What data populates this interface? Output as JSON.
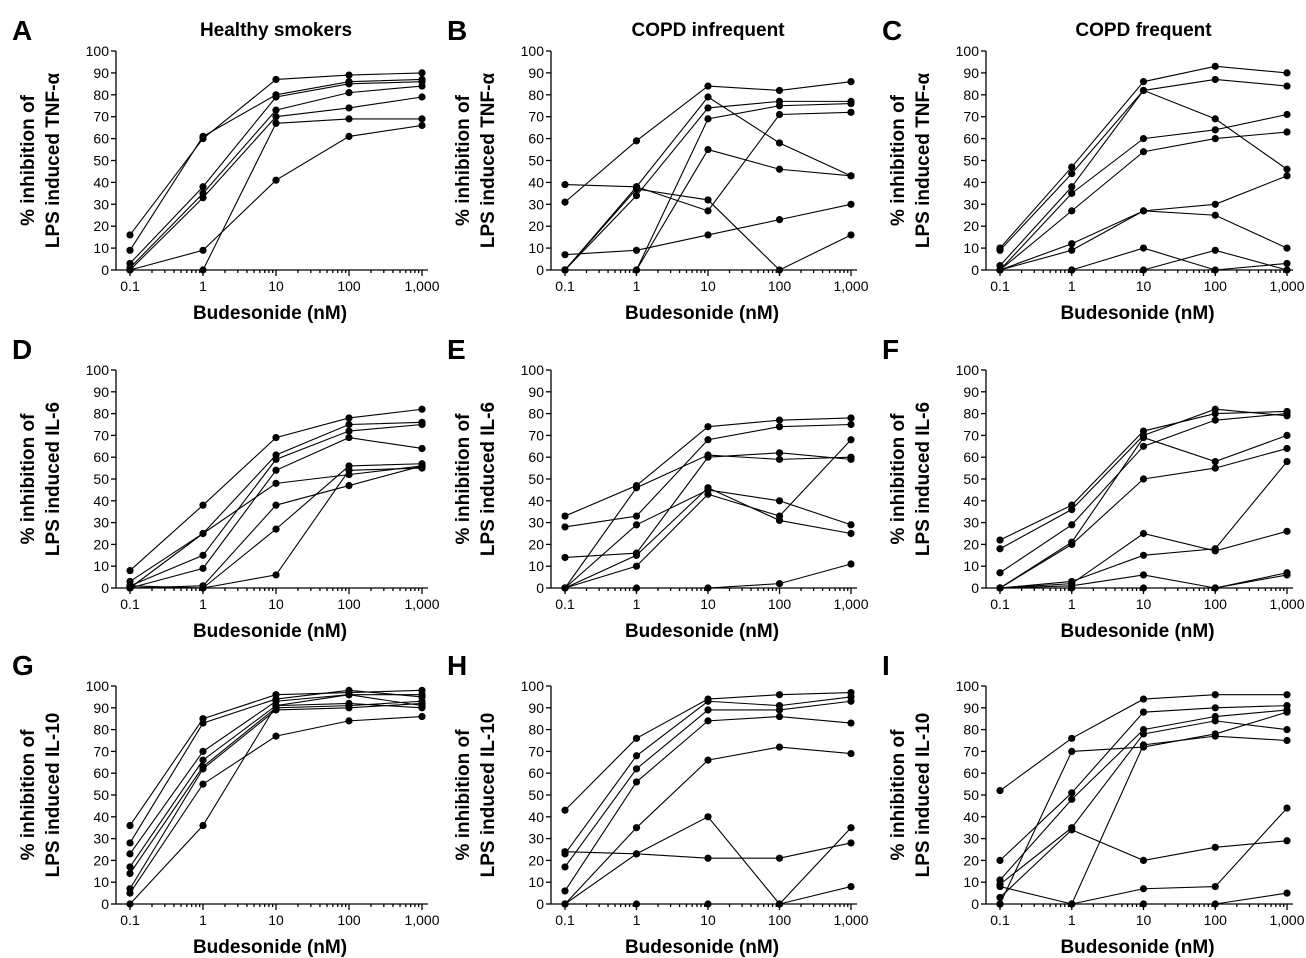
{
  "chart_data": [
    {
      "type": "line",
      "letter": "A",
      "title": "Healthy smokers",
      "ylabel_lines": [
        "% inhibition of",
        "LPS induced TNF-α"
      ],
      "xlabel": "Budesonide (nM)",
      "x": [
        0.1,
        1,
        10,
        100,
        1000
      ],
      "x_tick_labels": [
        "0.1",
        "1",
        "10",
        "100",
        "1,000"
      ],
      "y_ticks": [
        0,
        10,
        20,
        30,
        40,
        50,
        60,
        70,
        80,
        90,
        100
      ],
      "ylim": [
        0,
        100
      ],
      "x_scale": "log",
      "series": [
        {
          "values": [
            16,
            60,
            87,
            89,
            90
          ]
        },
        {
          "values": [
            9,
            61,
            80,
            86,
            87
          ]
        },
        {
          "values": [
            3,
            38,
            79,
            85,
            86
          ]
        },
        {
          "values": [
            1,
            35,
            73,
            81,
            84
          ]
        },
        {
          "values": [
            0,
            33,
            70,
            74,
            79
          ]
        },
        {
          "values": [
            0,
            0,
            67,
            69,
            69
          ]
        },
        {
          "values": [
            0,
            9,
            41,
            61,
            66
          ]
        }
      ]
    },
    {
      "type": "line",
      "letter": "B",
      "title": "COPD infrequent",
      "ylabel_lines": [
        "% inhibition of",
        "LPS induced TNF-α"
      ],
      "xlabel": "Budesonide (nM)",
      "x": [
        0.1,
        1,
        10,
        100,
        1000
      ],
      "x_tick_labels": [
        "0.1",
        "1",
        "10",
        "100",
        "1,000"
      ],
      "y_ticks": [
        0,
        10,
        20,
        30,
        40,
        50,
        60,
        70,
        80,
        90,
        100
      ],
      "ylim": [
        0,
        100
      ],
      "x_scale": "log",
      "series": [
        {
          "values": [
            31,
            59,
            84,
            82,
            86
          ]
        },
        {
          "values": [
            0,
            38,
            79,
            58,
            43
          ]
        },
        {
          "values": [
            0,
            34,
            74,
            77,
            77
          ]
        },
        {
          "values": [
            0,
            0,
            69,
            75,
            76
          ]
        },
        {
          "values": [
            39,
            38,
            27,
            71,
            72
          ]
        },
        {
          "values": [
            0,
            0,
            55,
            46,
            43
          ]
        },
        {
          "values": [
            0,
            37,
            32,
            0,
            16
          ]
        },
        {
          "values": [
            7,
            9,
            16,
            23,
            30
          ]
        }
      ]
    },
    {
      "type": "line",
      "letter": "C",
      "title": "COPD frequent",
      "ylabel_lines": [
        "% inhibition of",
        "LPS induced TNF-α"
      ],
      "xlabel": "Budesonide (nM)",
      "x": [
        0.1,
        1,
        10,
        100,
        1000
      ],
      "x_tick_labels": [
        "0.1",
        "1",
        "10",
        "100",
        "1,000"
      ],
      "y_ticks": [
        0,
        10,
        20,
        30,
        40,
        50,
        60,
        70,
        80,
        90,
        100
      ],
      "ylim": [
        0,
        100
      ],
      "x_scale": "log",
      "series": [
        {
          "values": [
            10,
            47,
            86,
            93,
            90
          ]
        },
        {
          "values": [
            9,
            44,
            82,
            87,
            84
          ]
        },
        {
          "values": [
            2,
            38,
            82,
            69,
            46
          ]
        },
        {
          "values": [
            0,
            35,
            60,
            64,
            71
          ]
        },
        {
          "values": [
            0,
            27,
            54,
            60,
            63
          ]
        },
        {
          "values": [
            0,
            12,
            27,
            30,
            43
          ]
        },
        {
          "values": [
            0,
            9,
            27,
            25,
            10
          ]
        },
        {
          "values": [
            0,
            0,
            10,
            0,
            3
          ]
        },
        {
          "values": [
            0,
            0,
            0,
            9,
            0
          ]
        }
      ]
    },
    {
      "type": "line",
      "letter": "D",
      "title": "",
      "ylabel_lines": [
        "% inhibition of",
        "LPS induced IL-6"
      ],
      "xlabel": "Budesonide (nM)",
      "x": [
        0.1,
        1,
        10,
        100,
        1000
      ],
      "x_tick_labels": [
        "0.1",
        "1",
        "10",
        "100",
        "1,000"
      ],
      "y_ticks": [
        0,
        10,
        20,
        30,
        40,
        50,
        60,
        70,
        80,
        90,
        100
      ],
      "ylim": [
        0,
        100
      ],
      "x_scale": "log",
      "series": [
        {
          "values": [
            8,
            38,
            69,
            78,
            82
          ]
        },
        {
          "values": [
            3,
            25,
            61,
            75,
            76
          ]
        },
        {
          "values": [
            1,
            15,
            59,
            72,
            75
          ]
        },
        {
          "values": [
            0,
            9,
            54,
            69,
            64
          ]
        },
        {
          "values": [
            0,
            25,
            48,
            52,
            56
          ]
        },
        {
          "values": [
            0,
            1,
            38,
            47,
            56
          ]
        },
        {
          "values": [
            1,
            0,
            27,
            56,
            57
          ]
        },
        {
          "values": [
            0,
            0,
            6,
            54,
            55
          ]
        }
      ]
    },
    {
      "type": "line",
      "letter": "E",
      "title": "",
      "ylabel_lines": [
        "% inhibition of",
        "LPS induced IL-6"
      ],
      "xlabel": "Budesonide (nM)",
      "x": [
        0.1,
        1,
        10,
        100,
        1000
      ],
      "x_tick_labels": [
        "0.1",
        "1",
        "10",
        "100",
        "1,000"
      ],
      "y_ticks": [
        0,
        10,
        20,
        30,
        40,
        50,
        60,
        70,
        80,
        90,
        100
      ],
      "ylim": [
        0,
        100
      ],
      "x_scale": "log",
      "series": [
        {
          "values": [
            33,
            47,
            74,
            77,
            78
          ]
        },
        {
          "values": [
            28,
            33,
            68,
            74,
            75
          ]
        },
        {
          "values": [
            14,
            16,
            60,
            62,
            59
          ]
        },
        {
          "values": [
            0,
            46,
            61,
            59,
            60
          ]
        },
        {
          "values": [
            0,
            29,
            45,
            40,
            29
          ]
        },
        {
          "values": [
            0,
            15,
            46,
            31,
            25
          ]
        },
        {
          "values": [
            0,
            10,
            43,
            33,
            68
          ]
        },
        {
          "values": [
            0,
            0,
            0,
            2,
            11
          ]
        }
      ]
    },
    {
      "type": "line",
      "letter": "F",
      "title": "",
      "ylabel_lines": [
        "% inhibition of",
        "LPS induced IL-6"
      ],
      "xlabel": "Budesonide (nM)",
      "x": [
        0.1,
        1,
        10,
        100,
        1000
      ],
      "x_tick_labels": [
        "0.1",
        "1",
        "10",
        "100",
        "1,000"
      ],
      "y_ticks": [
        0,
        10,
        20,
        30,
        40,
        50,
        60,
        70,
        80,
        90,
        100
      ],
      "ylim": [
        0,
        100
      ],
      "x_scale": "log",
      "series": [
        {
          "values": [
            22,
            38,
            72,
            80,
            81
          ]
        },
        {
          "values": [
            18,
            36,
            70,
            82,
            79
          ]
        },
        {
          "values": [
            7,
            29,
            65,
            77,
            80
          ]
        },
        {
          "values": [
            0,
            21,
            69,
            58,
            70
          ]
        },
        {
          "values": [
            0,
            20,
            50,
            55,
            64
          ]
        },
        {
          "values": [
            0,
            3,
            15,
            18,
            58
          ]
        },
        {
          "values": [
            0,
            2,
            25,
            17,
            26
          ]
        },
        {
          "values": [
            0,
            1,
            6,
            0,
            7
          ]
        },
        {
          "values": [
            0,
            0,
            0,
            0,
            6
          ]
        }
      ]
    },
    {
      "type": "line",
      "letter": "G",
      "title": "",
      "ylabel_lines": [
        "% inhibition of",
        "LPS induced IL-10"
      ],
      "xlabel": "Budesonide (nM)",
      "x": [
        0.1,
        1,
        10,
        100,
        1000
      ],
      "x_tick_labels": [
        "0.1",
        "1",
        "10",
        "100",
        "1,000"
      ],
      "y_ticks": [
        0,
        10,
        20,
        30,
        40,
        50,
        60,
        70,
        80,
        90,
        100
      ],
      "ylim": [
        0,
        100
      ],
      "x_scale": "log",
      "series": [
        {
          "values": [
            36,
            85,
            96,
            97,
            98
          ]
        },
        {
          "values": [
            28,
            83,
            94,
            98,
            95
          ]
        },
        {
          "values": [
            23,
            70,
            93,
            96,
            96
          ]
        },
        {
          "values": [
            17,
            66,
            91,
            96,
            91
          ]
        },
        {
          "values": [
            14,
            63,
            90,
            91,
            93
          ]
        },
        {
          "values": [
            7,
            62,
            89,
            90,
            92
          ]
        },
        {
          "values": [
            5,
            55,
            77,
            84,
            86
          ]
        },
        {
          "values": [
            0,
            36,
            91,
            92,
            90
          ]
        }
      ]
    },
    {
      "type": "line",
      "letter": "H",
      "title": "",
      "ylabel_lines": [
        "% inhibition of",
        "LPS induced IL-10"
      ],
      "xlabel": "Budesonide (nM)",
      "x": [
        0.1,
        1,
        10,
        100,
        1000
      ],
      "x_tick_labels": [
        "0.1",
        "1",
        "10",
        "100",
        "1,000"
      ],
      "y_ticks": [
        0,
        10,
        20,
        30,
        40,
        50,
        60,
        70,
        80,
        90,
        100
      ],
      "ylim": [
        0,
        100
      ],
      "x_scale": "log",
      "series": [
        {
          "values": [
            43,
            76,
            94,
            96,
            97
          ]
        },
        {
          "values": [
            23,
            68,
            93,
            91,
            95
          ]
        },
        {
          "values": [
            17,
            62,
            89,
            89,
            93
          ]
        },
        {
          "values": [
            6,
            56,
            84,
            86,
            83
          ]
        },
        {
          "values": [
            0,
            35,
            66,
            72,
            69
          ]
        },
        {
          "values": [
            0,
            23,
            40,
            0,
            35
          ]
        },
        {
          "values": [
            24,
            23,
            21,
            21,
            28
          ]
        },
        {
          "values": [
            0,
            0,
            0,
            0,
            8
          ]
        }
      ]
    },
    {
      "type": "line",
      "letter": "I",
      "title": "",
      "ylabel_lines": [
        "% inhibition of",
        "LPS induced IL-10"
      ],
      "xlabel": "Budesonide (nM)",
      "x": [
        0.1,
        1,
        10,
        100,
        1000
      ],
      "x_tick_labels": [
        "0.1",
        "1",
        "10",
        "100",
        "1,000"
      ],
      "y_ticks": [
        0,
        10,
        20,
        30,
        40,
        50,
        60,
        70,
        80,
        90,
        100
      ],
      "ylim": [
        0,
        100
      ],
      "x_scale": "log",
      "series": [
        {
          "values": [
            52,
            76,
            94,
            96,
            96
          ]
        },
        {
          "values": [
            20,
            51,
            88,
            90,
            91
          ]
        },
        {
          "values": [
            11,
            48,
            80,
            86,
            89
          ]
        },
        {
          "values": [
            9,
            35,
            78,
            84,
            80
          ]
        },
        {
          "values": [
            0,
            70,
            72,
            78,
            88
          ]
        },
        {
          "values": [
            8,
            0,
            73,
            77,
            75
          ]
        },
        {
          "values": [
            3,
            34,
            20,
            26,
            29
          ]
        },
        {
          "values": [
            0,
            0,
            7,
            8,
            44
          ]
        },
        {
          "values": [
            0,
            0,
            0,
            0,
            5
          ]
        }
      ]
    }
  ]
}
